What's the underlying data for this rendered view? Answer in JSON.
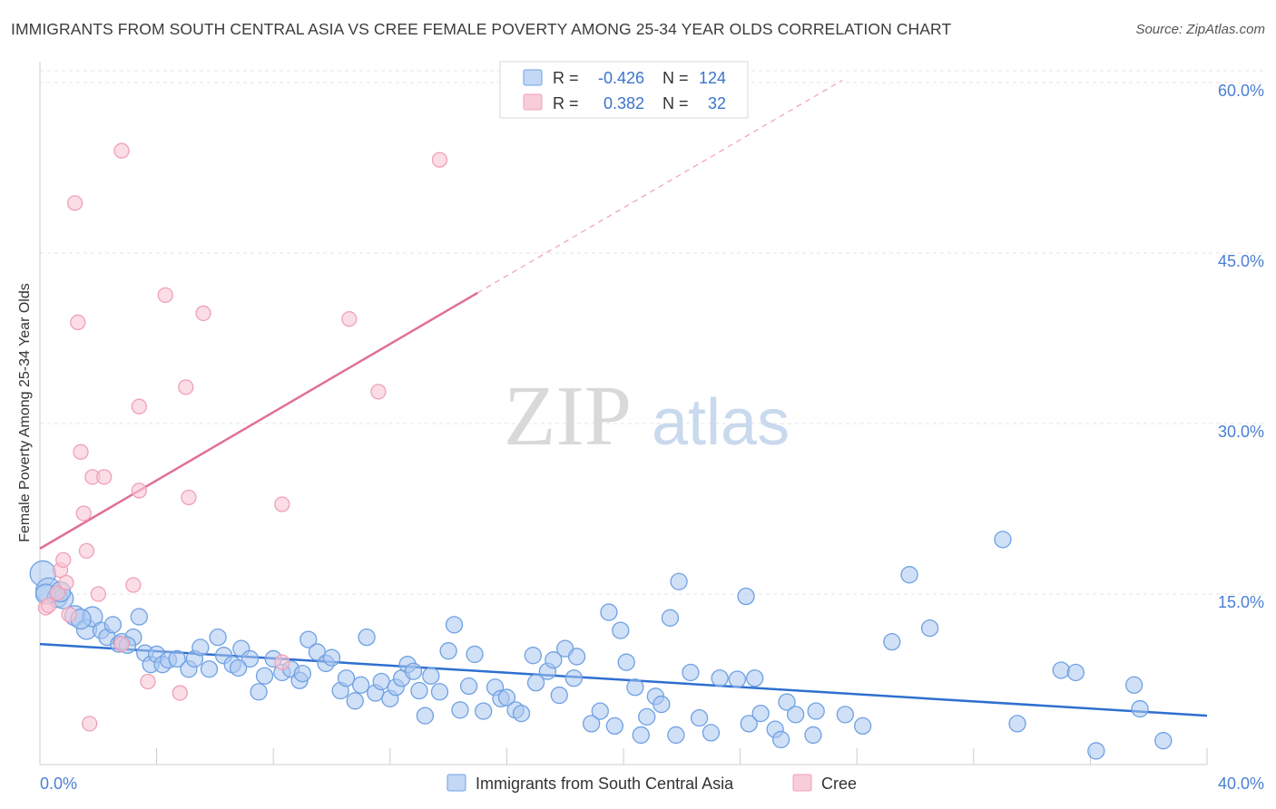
{
  "title": "IMMIGRANTS FROM SOUTH CENTRAL ASIA VS CREE FEMALE POVERTY AMONG 25-34 YEAR OLDS CORRELATION CHART",
  "source": "Source: ZipAtlas.com",
  "watermark": {
    "zip": "ZIP",
    "atlas": "atlas"
  },
  "colors": {
    "blue": "#6fa1e3",
    "blue_line": "#2f6fcf",
    "pink": "#f0a0b8",
    "pink_line": "#e07098",
    "tick_text": "#4a7fd4"
  },
  "legend": {
    "rows": [
      {
        "r_label": "R =",
        "r_value": "-0.426",
        "n_label": "N =",
        "n_value": "124"
      },
      {
        "r_label": "R =",
        "r_value": "0.382",
        "n_label": "N =",
        "n_value": "32"
      }
    ]
  },
  "chart_data": {
    "type": "scatter",
    "title": "IMMIGRANTS FROM SOUTH CENTRAL ASIA VS CREE FEMALE POVERTY AMONG 25-34 YEAR OLDS CORRELATION CHART",
    "xlabel": "",
    "ylabel": "Female Poverty Among 25-34 Year Olds",
    "xlim": [
      0,
      40
    ],
    "ylim": [
      0,
      62
    ],
    "x_tick_labels": [
      "0.0%",
      "40.0%"
    ],
    "y_ticks": [
      15,
      30,
      45,
      60
    ],
    "y_tick_labels": [
      "15.0%",
      "30.0%",
      "45.0%",
      "60.0%"
    ],
    "grid": true,
    "legend_position": "top-center",
    "series": [
      {
        "name": "Immigrants from South Central Asia",
        "color": "#6fa1e3",
        "trend": {
          "x": [
            0,
            40
          ],
          "y": [
            10.6,
            4.3
          ]
        },
        "points": [
          [
            0.1,
            16.8
          ],
          [
            0.3,
            15.3
          ],
          [
            0.6,
            14.7
          ],
          [
            0.8,
            14.6
          ],
          [
            1.2,
            13.1
          ],
          [
            1.6,
            11.9
          ],
          [
            1.8,
            13.0
          ],
          [
            2.1,
            11.8
          ],
          [
            2.3,
            11.2
          ],
          [
            2.5,
            12.3
          ],
          [
            2.7,
            10.6
          ],
          [
            2.8,
            10.8
          ],
          [
            3.2,
            11.2
          ],
          [
            3.4,
            13.0
          ],
          [
            3.6,
            9.8
          ],
          [
            3.8,
            8.8
          ],
          [
            4.0,
            9.7
          ],
          [
            4.2,
            8.8
          ],
          [
            4.4,
            9.2
          ],
          [
            4.7,
            9.3
          ],
          [
            5.1,
            8.4
          ],
          [
            5.3,
            9.3
          ],
          [
            5.5,
            10.3
          ],
          [
            5.8,
            8.4
          ],
          [
            6.1,
            11.2
          ],
          [
            6.3,
            9.6
          ],
          [
            6.6,
            8.8
          ],
          [
            6.9,
            10.2
          ],
          [
            7.2,
            9.3
          ],
          [
            7.5,
            6.4
          ],
          [
            7.7,
            7.8
          ],
          [
            8.0,
            9.3
          ],
          [
            8.3,
            8.1
          ],
          [
            8.6,
            8.4
          ],
          [
            8.9,
            7.4
          ],
          [
            9.2,
            11.0
          ],
          [
            9.5,
            9.9
          ],
          [
            9.8,
            8.9
          ],
          [
            10.0,
            9.4
          ],
          [
            10.3,
            6.5
          ],
          [
            10.5,
            7.6
          ],
          [
            10.8,
            5.6
          ],
          [
            11.0,
            7.0
          ],
          [
            11.2,
            11.2
          ],
          [
            11.5,
            6.3
          ],
          [
            11.7,
            7.3
          ],
          [
            12.0,
            5.8
          ],
          [
            12.2,
            6.8
          ],
          [
            12.4,
            7.6
          ],
          [
            12.6,
            8.8
          ],
          [
            12.8,
            8.2
          ],
          [
            13.0,
            6.5
          ],
          [
            13.2,
            4.3
          ],
          [
            13.4,
            7.8
          ],
          [
            13.7,
            6.4
          ],
          [
            14.0,
            10.0
          ],
          [
            14.2,
            12.3
          ],
          [
            14.4,
            4.8
          ],
          [
            14.7,
            6.9
          ],
          [
            14.9,
            9.7
          ],
          [
            15.2,
            4.7
          ],
          [
            15.6,
            6.8
          ],
          [
            15.8,
            5.8
          ],
          [
            16.0,
            5.9
          ],
          [
            16.3,
            4.8
          ],
          [
            16.5,
            4.5
          ],
          [
            16.9,
            9.6
          ],
          [
            17.0,
            7.2
          ],
          [
            17.4,
            8.2
          ],
          [
            17.6,
            9.2
          ],
          [
            17.8,
            6.1
          ],
          [
            18.0,
            10.2
          ],
          [
            18.3,
            7.6
          ],
          [
            18.4,
            9.5
          ],
          [
            18.9,
            3.6
          ],
          [
            19.2,
            4.7
          ],
          [
            19.5,
            13.4
          ],
          [
            19.7,
            3.4
          ],
          [
            19.9,
            11.8
          ],
          [
            20.1,
            9.0
          ],
          [
            20.4,
            6.8
          ],
          [
            20.6,
            2.6
          ],
          [
            20.8,
            4.2
          ],
          [
            21.1,
            6.0
          ],
          [
            21.3,
            5.3
          ],
          [
            21.6,
            12.9
          ],
          [
            21.8,
            2.6
          ],
          [
            21.9,
            16.1
          ],
          [
            22.3,
            8.1
          ],
          [
            22.6,
            4.1
          ],
          [
            23.0,
            2.8
          ],
          [
            23.3,
            7.6
          ],
          [
            23.9,
            7.5
          ],
          [
            24.2,
            14.8
          ],
          [
            24.3,
            3.6
          ],
          [
            24.5,
            7.6
          ],
          [
            24.7,
            4.5
          ],
          [
            25.2,
            3.1
          ],
          [
            25.4,
            2.2
          ],
          [
            25.6,
            5.5
          ],
          [
            25.9,
            4.4
          ],
          [
            26.5,
            2.6
          ],
          [
            26.6,
            4.7
          ],
          [
            27.6,
            4.4
          ],
          [
            28.2,
            3.4
          ],
          [
            29.2,
            10.8
          ],
          [
            29.8,
            16.7
          ],
          [
            30.5,
            12.0
          ],
          [
            33.0,
            19.8
          ],
          [
            33.5,
            3.6
          ],
          [
            35.0,
            8.3
          ],
          [
            35.5,
            8.1
          ],
          [
            36.2,
            1.2
          ],
          [
            37.5,
            7.0
          ],
          [
            37.7,
            4.9
          ],
          [
            38.5,
            2.1
          ],
          [
            0.2,
            15.0
          ],
          [
            0.7,
            15.2
          ],
          [
            1.4,
            12.8
          ],
          [
            3.0,
            10.5
          ],
          [
            6.8,
            8.5
          ],
          [
            9.0,
            8.0
          ]
        ]
      },
      {
        "name": "Cree",
        "color": "#f0a0b8",
        "trend": {
          "x": [
            0,
            15
          ],
          "y": [
            19.0,
            41.5
          ]
        },
        "trend_extension": {
          "x": [
            15,
            27.5
          ],
          "y": [
            41.5,
            60.2
          ]
        },
        "points": [
          [
            0.2,
            13.8
          ],
          [
            0.3,
            14.0
          ],
          [
            0.6,
            15.1
          ],
          [
            0.7,
            17.1
          ],
          [
            0.8,
            18.0
          ],
          [
            0.9,
            16.0
          ],
          [
            1.0,
            13.2
          ],
          [
            1.2,
            49.4
          ],
          [
            1.3,
            38.9
          ],
          [
            1.4,
            27.5
          ],
          [
            1.5,
            22.1
          ],
          [
            1.6,
            18.8
          ],
          [
            1.7,
            3.6
          ],
          [
            1.8,
            25.3
          ],
          [
            2.0,
            15.0
          ],
          [
            2.2,
            25.3
          ],
          [
            2.8,
            10.6
          ],
          [
            2.8,
            54.0
          ],
          [
            3.2,
            15.8
          ],
          [
            3.4,
            24.1
          ],
          [
            3.4,
            31.5
          ],
          [
            3.7,
            7.3
          ],
          [
            4.3,
            41.3
          ],
          [
            4.8,
            6.3
          ],
          [
            5.0,
            33.2
          ],
          [
            5.1,
            23.5
          ],
          [
            5.6,
            39.7
          ],
          [
            8.3,
            22.9
          ],
          [
            8.3,
            9.0
          ],
          [
            10.6,
            39.2
          ],
          [
            11.6,
            32.8
          ],
          [
            13.7,
            53.2
          ]
        ]
      }
    ]
  }
}
